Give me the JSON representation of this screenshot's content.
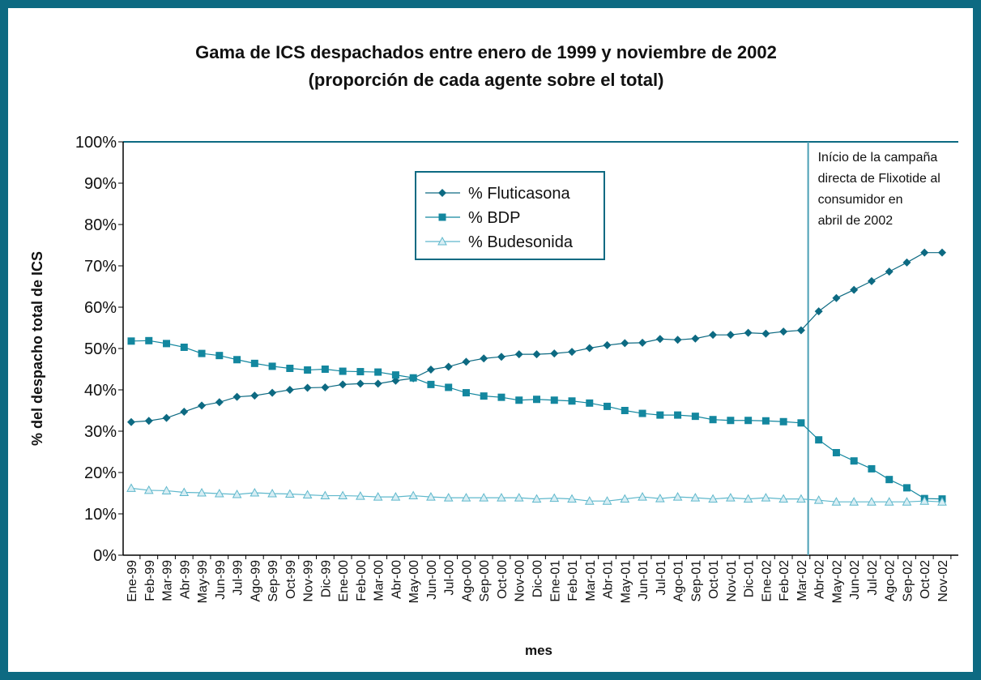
{
  "chart_data": {
    "type": "line",
    "title": "Gama de ICS despachados entre enero de 1999 y noviembre de 2002",
    "subtitle": "(proporción de cada agente sobre el total)",
    "x_label": "mes",
    "y_label": "% del despacho total de ICS",
    "annotation": [
      "Início de la campaña",
      "directa de Flixotide al",
      "consumidor en",
      "abril de 2002"
    ],
    "categories": [
      "Ene-99",
      "Feb-99",
      "Mar-99",
      "Abr-99",
      "May-99",
      "Jun-99",
      "Jul-99",
      "Ago-99",
      "Sep-99",
      "Oct-99",
      "Nov-99",
      "Dic-99",
      "Ene-00",
      "Feb-00",
      "Mar-00",
      "Abr-00",
      "May-00",
      "Jun-00",
      "Jul-00",
      "Ago-00",
      "Sep-00",
      "Oct-00",
      "Nov-00",
      "Dic-00",
      "Ene-01",
      "Feb-01",
      "Mar-01",
      "Abr-01",
      "May-01",
      "Jun-01",
      "Jul-01",
      "Ago-01",
      "Sep-01",
      "Oct-01",
      "Nov-01",
      "Dic-01",
      "Ene-02",
      "Feb-02",
      "Mar-02",
      "Abr-02",
      "May-02",
      "Jun-02",
      "Jul-02",
      "Ago-02",
      "Sep-02",
      "Oct-02",
      "Nov-02"
    ],
    "series": [
      {
        "name": "% Fluticasona",
        "color": "#0d6a82",
        "marker": "diamond",
        "values": [
          32.2,
          32.5,
          33.2,
          34.7,
          36.2,
          37.0,
          38.3,
          38.6,
          39.3,
          40.0,
          40.5,
          40.6,
          41.3,
          41.5,
          41.5,
          42.2,
          42.8,
          44.9,
          45.6,
          46.8,
          47.6,
          48.0,
          48.6,
          48.6,
          48.8,
          49.2,
          50.1,
          50.8,
          51.3,
          51.4,
          52.3,
          52.1,
          52.4,
          53.3,
          53.3,
          53.8,
          53.6,
          54.1,
          54.4,
          59.0,
          62.2,
          64.2,
          66.3,
          68.6,
          70.8,
          73.2,
          73.2
        ]
      },
      {
        "name": "% BDP",
        "color": "#13879f",
        "marker": "square",
        "values": [
          51.8,
          51.9,
          51.2,
          50.3,
          48.8,
          48.3,
          47.3,
          46.4,
          45.7,
          45.2,
          44.8,
          45.0,
          44.5,
          44.4,
          44.3,
          43.6,
          42.9,
          41.3,
          40.6,
          39.3,
          38.5,
          38.2,
          37.5,
          37.7,
          37.5,
          37.3,
          36.8,
          36.0,
          35.0,
          34.3,
          33.9,
          33.9,
          33.6,
          32.8,
          32.6,
          32.6,
          32.5,
          32.3,
          32.0,
          27.9,
          24.8,
          22.8,
          20.9,
          18.3,
          16.3,
          13.7,
          13.6
        ]
      },
      {
        "name": "% Budesonida",
        "color": "#5fb8cc",
        "marker": "triangle",
        "values": [
          16.2,
          15.7,
          15.6,
          15.2,
          15.1,
          14.9,
          14.7,
          15.1,
          14.9,
          14.8,
          14.6,
          14.4,
          14.4,
          14.3,
          14.1,
          14.1,
          14.4,
          14.1,
          13.9,
          13.9,
          13.9,
          13.9,
          13.9,
          13.6,
          13.8,
          13.6,
          13.1,
          13.1,
          13.6,
          14.1,
          13.7,
          14.1,
          13.9,
          13.6,
          13.9,
          13.6,
          13.9,
          13.6,
          13.6,
          13.3,
          12.9,
          12.9,
          12.9,
          12.9,
          12.9,
          13.1,
          12.9
        ]
      }
    ],
    "ylim": [
      0,
      100
    ],
    "yticks": [
      {
        "value": 0,
        "label": "0%"
      },
      {
        "value": 10,
        "label": "10%"
      },
      {
        "value": 20,
        "label": "20%"
      },
      {
        "value": 30,
        "label": "30%"
      },
      {
        "value": 40,
        "label": "40%"
      },
      {
        "value": 50,
        "label": "50%"
      },
      {
        "value": 60,
        "label": "60%"
      },
      {
        "value": 70,
        "label": "70%"
      },
      {
        "value": 80,
        "label": "80%"
      },
      {
        "value": 90,
        "label": "90%"
      },
      {
        "value": 100,
        "label": "100%"
      }
    ]
  }
}
